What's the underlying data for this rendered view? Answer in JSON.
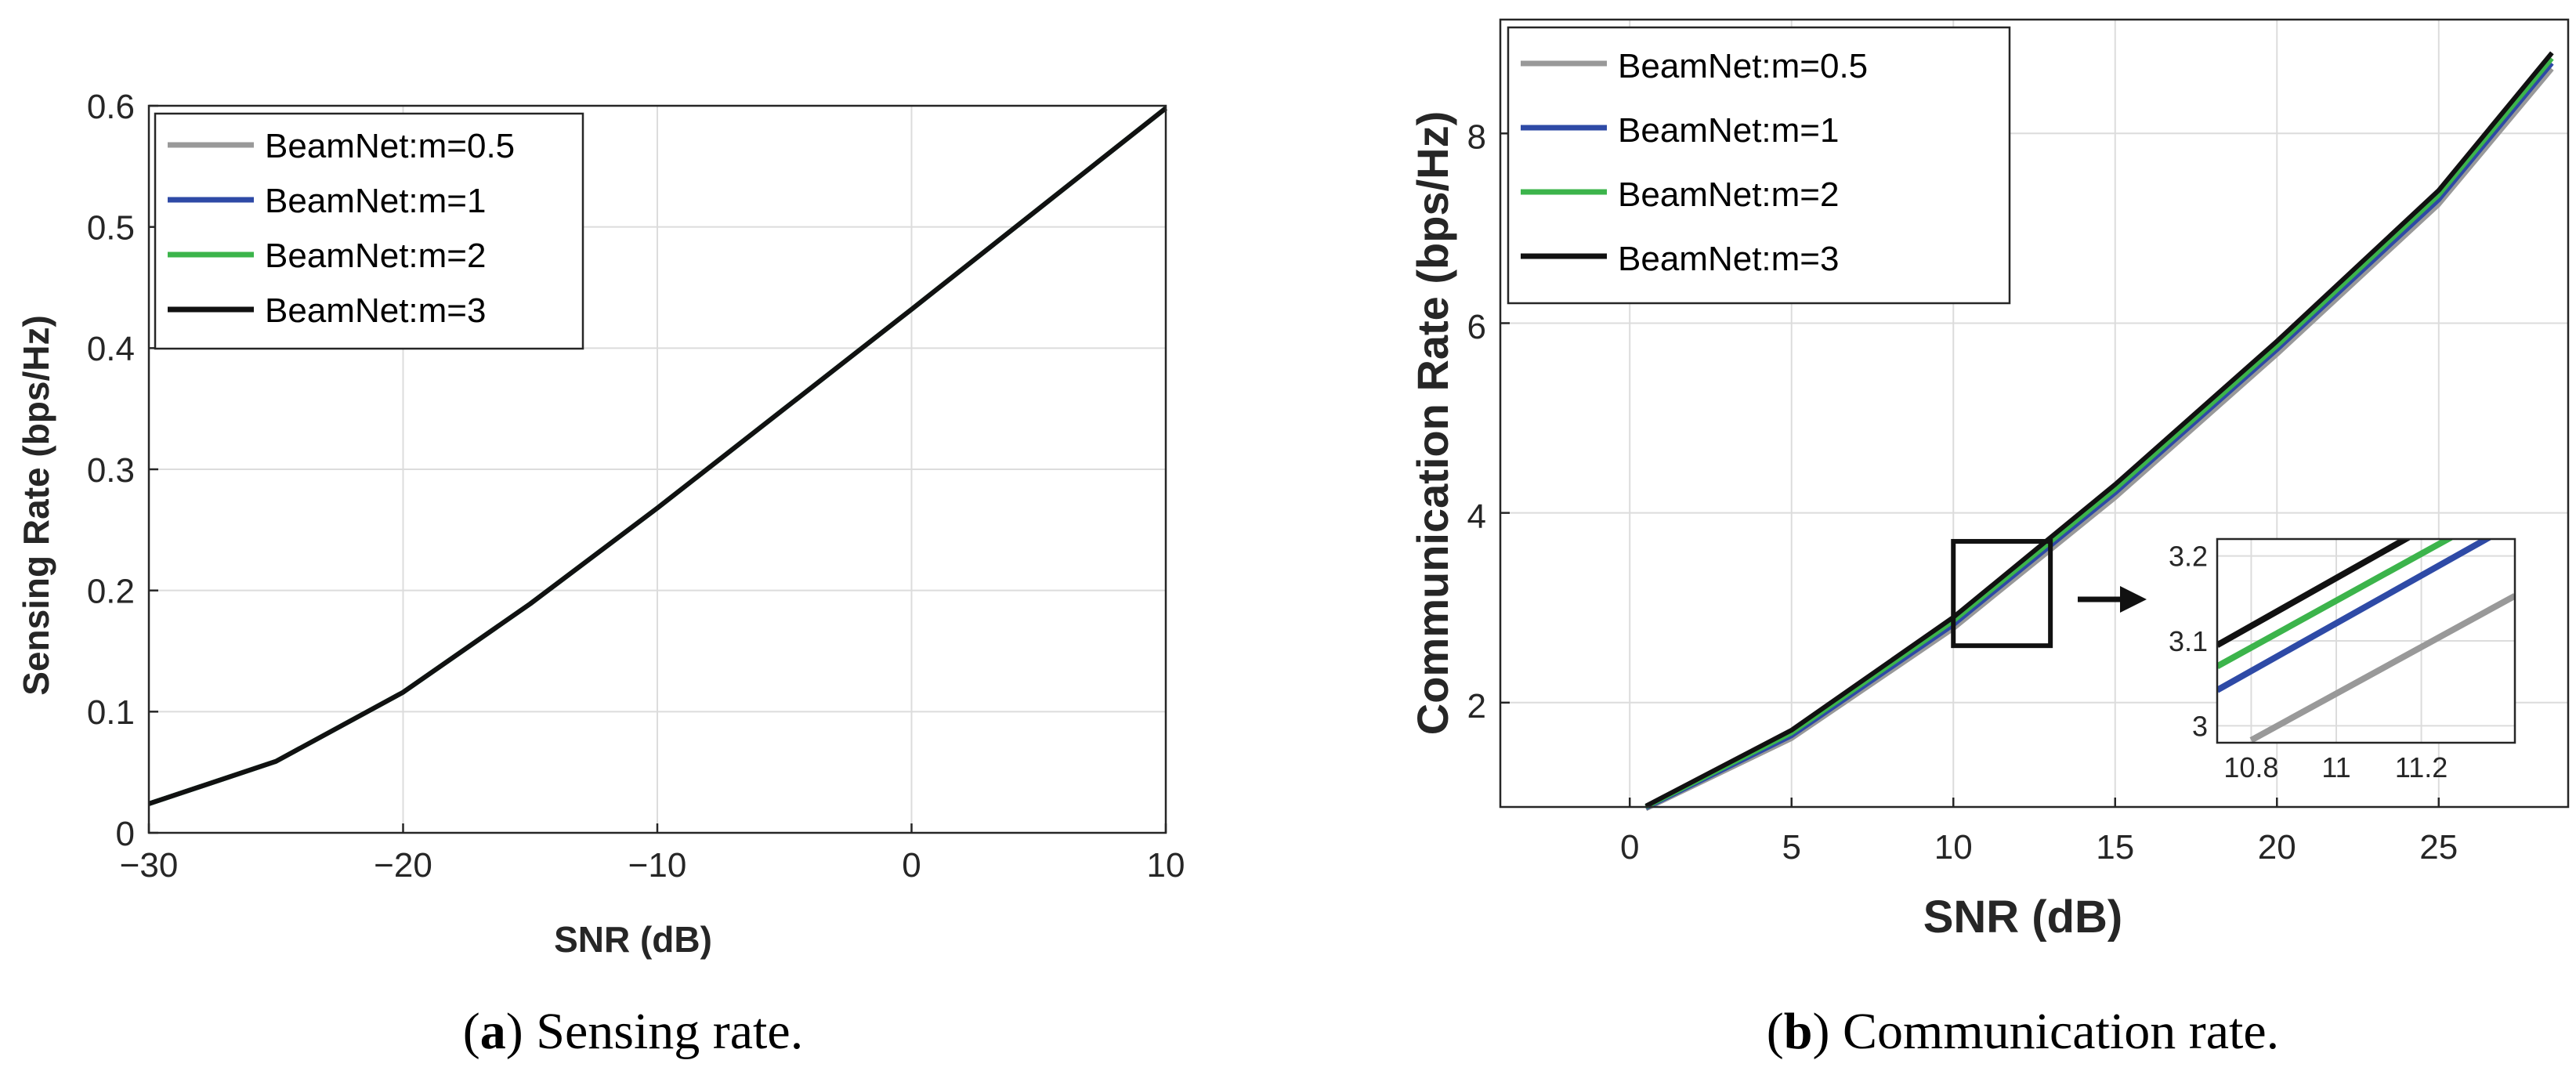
{
  "chart_data": [
    {
      "type": "line",
      "id": "a",
      "xlabel": "SNR (dB)",
      "ylabel": "Sensing Rate (bps/Hz)",
      "xlim": [
        -30,
        10
      ],
      "ylim": [
        0,
        0.6
      ],
      "xticks": [
        -30,
        -20,
        -10,
        0,
        10
      ],
      "xtick_labels": [
        "−30",
        "−20",
        "−10",
        "0",
        "10"
      ],
      "yticks": [
        0,
        0.1,
        0.2,
        0.3,
        0.4,
        0.5,
        0.6
      ],
      "ytick_labels": [
        "0",
        "0.1",
        "0.2",
        "0.3",
        "0.4",
        "0.5",
        "0.6"
      ],
      "grid": true,
      "legend_position": "top-left",
      "x": [
        -30,
        -25,
        -20,
        -15,
        -10,
        -5,
        0,
        5,
        10
      ],
      "series": [
        {
          "name": "BeamNet:m=0.5",
          "color": "#999999",
          "values": [
            0.024,
            0.059,
            0.116,
            0.189,
            0.268,
            0.35,
            0.432,
            0.515,
            0.598
          ]
        },
        {
          "name": "BeamNet:m=1",
          "color": "#2e4aa6",
          "values": [
            0.024,
            0.059,
            0.116,
            0.189,
            0.268,
            0.35,
            0.432,
            0.515,
            0.598
          ]
        },
        {
          "name": "BeamNet:m=2",
          "color": "#3cb44b",
          "values": [
            0.024,
            0.059,
            0.116,
            0.189,
            0.268,
            0.35,
            0.432,
            0.515,
            0.598
          ]
        },
        {
          "name": "BeamNet:m=3",
          "color": "#111111",
          "values": [
            0.024,
            0.059,
            0.116,
            0.189,
            0.268,
            0.35,
            0.432,
            0.515,
            0.598
          ]
        }
      ],
      "caption_label": "a",
      "caption_text": " Sensing rate."
    },
    {
      "type": "line",
      "id": "b",
      "xlabel": "SNR (dB)",
      "ylabel": "Communication Rate (bps/Hz)",
      "xlim": [
        -4,
        29
      ],
      "ylim": [
        0.9,
        9.2
      ],
      "xticks": [
        0,
        5,
        10,
        15,
        20,
        25
      ],
      "xtick_labels": [
        "0",
        "5",
        "10",
        "15",
        "20",
        "25"
      ],
      "yticks": [
        2,
        4,
        6,
        8
      ],
      "ytick_labels": [
        "2",
        "4",
        "6",
        "8"
      ],
      "grid": true,
      "legend_position": "top-left",
      "x": [
        0.5,
        5,
        10,
        15,
        20,
        25,
        28.5
      ],
      "series": [
        {
          "name": "BeamNet:m=0.5",
          "color": "#999999",
          "values": [
            0.88,
            1.62,
            2.78,
            4.16,
            5.67,
            7.25,
            8.68
          ]
        },
        {
          "name": "BeamNet:m=1",
          "color": "#2e4aa6",
          "values": [
            0.89,
            1.65,
            2.82,
            4.21,
            5.72,
            7.3,
            8.74
          ]
        },
        {
          "name": "BeamNet:m=2",
          "color": "#3cb44b",
          "values": [
            0.9,
            1.68,
            2.86,
            4.25,
            5.76,
            7.35,
            8.79
          ]
        },
        {
          "name": "BeamNet:m=3",
          "color": "#111111",
          "values": [
            0.91,
            1.71,
            2.9,
            4.3,
            5.81,
            7.4,
            8.85
          ]
        }
      ],
      "zoom_box": {
        "x": [
          10,
          13
        ],
        "y": [
          2.6,
          3.7
        ]
      },
      "inset": {
        "xlim": [
          10.72,
          11.42
        ],
        "ylim": [
          2.98,
          3.22
        ],
        "xticks": [
          10.8,
          11,
          11.2
        ],
        "xtick_labels": [
          "10.8",
          "11",
          "11.2"
        ],
        "yticks": [
          3,
          3.1,
          3.2
        ],
        "ytick_labels": [
          "3",
          "3.1",
          "3.2"
        ],
        "series": [
          {
            "name": "BeamNet:m=0.5",
            "color": "#999999",
            "x": [
              10.8,
              11.42
            ],
            "values": [
              2.983,
              3.153
            ]
          },
          {
            "name": "BeamNet:m=1",
            "color": "#2e4aa6",
            "x": [
              10.72,
              11.36
            ],
            "values": [
              3.042,
              3.222
            ]
          },
          {
            "name": "BeamNet:m=2",
            "color": "#3cb44b",
            "x": [
              10.72,
              11.27
            ],
            "values": [
              3.07,
              3.222
            ]
          },
          {
            "name": "BeamNet:m=3",
            "color": "#111111",
            "x": [
              10.72,
              11.17
            ],
            "values": [
              3.095,
              3.222
            ]
          }
        ]
      },
      "caption_label": "b",
      "caption_text": " Communication rate."
    }
  ]
}
